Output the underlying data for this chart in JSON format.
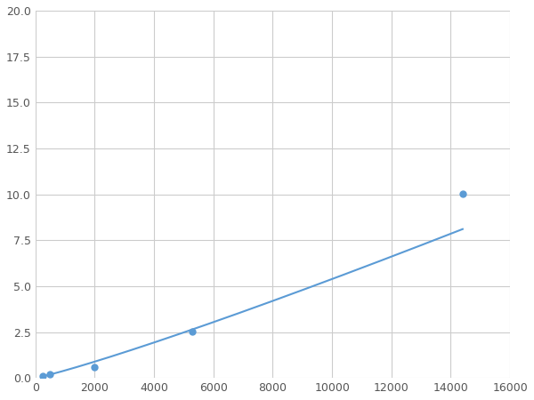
{
  "x": [
    250,
    500,
    2000,
    5285,
    14400
  ],
  "y": [
    0.1,
    0.2,
    0.6,
    2.55,
    10.05
  ],
  "line_color": "#5B9BD5",
  "marker_color": "#5B9BD5",
  "marker_size": 5,
  "line_width": 1.5,
  "xlim": [
    0,
    16000
  ],
  "ylim": [
    0,
    20.0
  ],
  "xticks": [
    0,
    2000,
    4000,
    6000,
    8000,
    10000,
    12000,
    14000,
    16000
  ],
  "yticks": [
    0.0,
    2.5,
    5.0,
    7.5,
    10.0,
    12.5,
    15.0,
    17.5,
    20.0
  ],
  "grid_color": "#CCCCCC",
  "background_color": "#FFFFFF",
  "figsize": [
    6.0,
    4.5
  ],
  "dpi": 100
}
